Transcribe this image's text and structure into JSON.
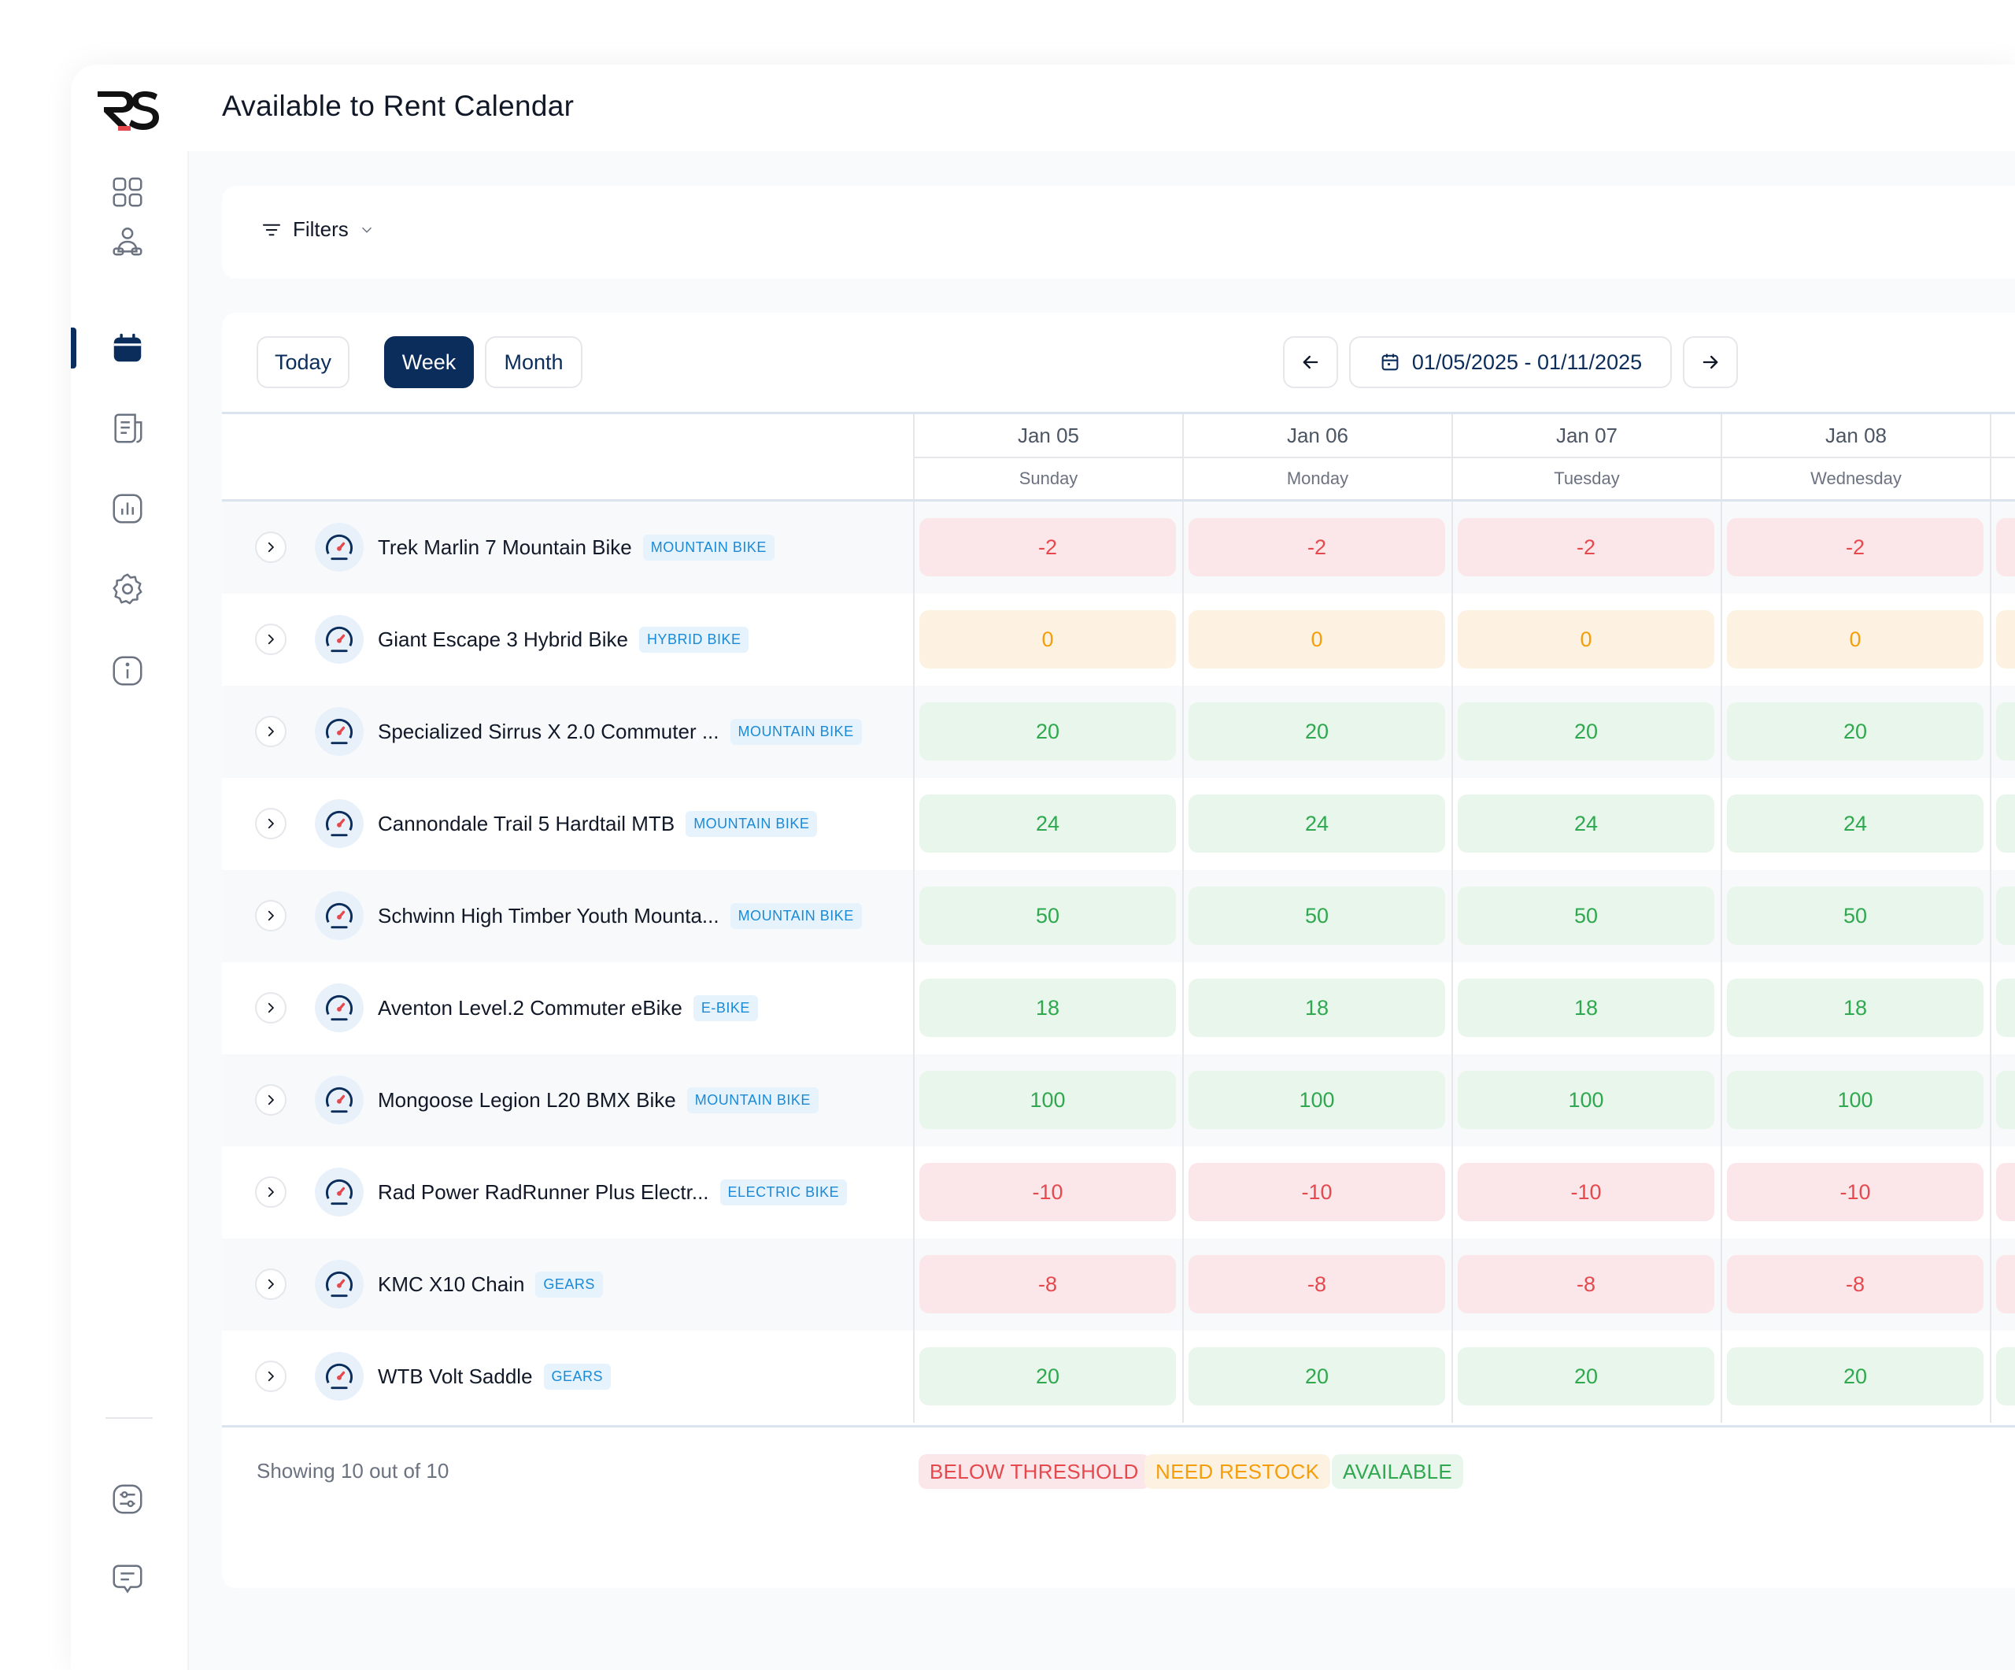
{
  "app": {
    "logo_text": "RS",
    "page_title": "Available to Rent Calendar"
  },
  "sidebar": {
    "items": [
      {
        "icon": "grid-icon",
        "active": false
      },
      {
        "icon": "users-icon",
        "active": false
      },
      {
        "icon": "calendar-icon",
        "active": true
      },
      {
        "icon": "document-icon",
        "active": false
      },
      {
        "icon": "chart-icon",
        "active": false
      },
      {
        "icon": "gear-icon",
        "active": false
      },
      {
        "icon": "info-icon",
        "active": false
      }
    ],
    "bottom_items": [
      {
        "icon": "sliders-icon"
      },
      {
        "icon": "chat-icon"
      }
    ]
  },
  "filters": {
    "label": "Filters"
  },
  "toolbar": {
    "today": "Today",
    "week": "Week",
    "month": "Month",
    "date_range": "01/05/2025 - 01/11/2025"
  },
  "days": [
    {
      "date": "Jan 05",
      "name": "Sunday"
    },
    {
      "date": "Jan 06",
      "name": "Monday"
    },
    {
      "date": "Jan 07",
      "name": "Tuesday"
    },
    {
      "date": "Jan 08",
      "name": "Wednesday"
    }
  ],
  "rows": [
    {
      "name": "Trek Marlin 7 Mountain Bike",
      "tag": "MOUNTAIN BIKE",
      "values": [
        "-2",
        "-2",
        "-2",
        "-2"
      ],
      "status": "neg"
    },
    {
      "name": "Giant Escape 3 Hybrid Bike",
      "tag": "HYBRID BIKE",
      "values": [
        "0",
        "0",
        "0",
        "0"
      ],
      "status": "zero"
    },
    {
      "name": "Specialized Sirrus X 2.0 Commuter ...",
      "tag": "MOUNTAIN BIKE",
      "values": [
        "20",
        "20",
        "20",
        "20"
      ],
      "status": "pos"
    },
    {
      "name": "Cannondale Trail 5 Hardtail MTB",
      "tag": "MOUNTAIN BIKE",
      "values": [
        "24",
        "24",
        "24",
        "24"
      ],
      "status": "pos"
    },
    {
      "name": "Schwinn High Timber Youth Mounta...",
      "tag": "MOUNTAIN BIKE",
      "values": [
        "50",
        "50",
        "50",
        "50"
      ],
      "status": "pos"
    },
    {
      "name": "Aventon Level.2 Commuter eBike",
      "tag": "E-BIKE",
      "values": [
        "18",
        "18",
        "18",
        "18"
      ],
      "status": "pos"
    },
    {
      "name": "Mongoose Legion L20 BMX Bike",
      "tag": "MOUNTAIN BIKE",
      "values": [
        "100",
        "100",
        "100",
        "100"
      ],
      "status": "pos"
    },
    {
      "name": "Rad Power RadRunner Plus Electr...",
      "tag": "ELECTRIC BIKE",
      "values": [
        "-10",
        "-10",
        "-10",
        "-10"
      ],
      "status": "neg"
    },
    {
      "name": "KMC X10 Chain",
      "tag": "GEARS",
      "values": [
        "-8",
        "-8",
        "-8",
        "-8"
      ],
      "status": "neg"
    },
    {
      "name": "WTB Volt Saddle",
      "tag": "GEARS",
      "values": [
        "20",
        "20",
        "20",
        "20"
      ],
      "status": "pos"
    }
  ],
  "footer": {
    "showing": "Showing 10 out of 10",
    "legend": [
      "BELOW THRESHOLD",
      "NEED RESTOCK",
      "AVAILABLE"
    ]
  },
  "colors": {
    "primary": "#0b2d5b",
    "below_threshold": "#e5484d",
    "need_restock": "#f59e0b",
    "available": "#2fa84f",
    "tag": "#1a8ad6"
  }
}
